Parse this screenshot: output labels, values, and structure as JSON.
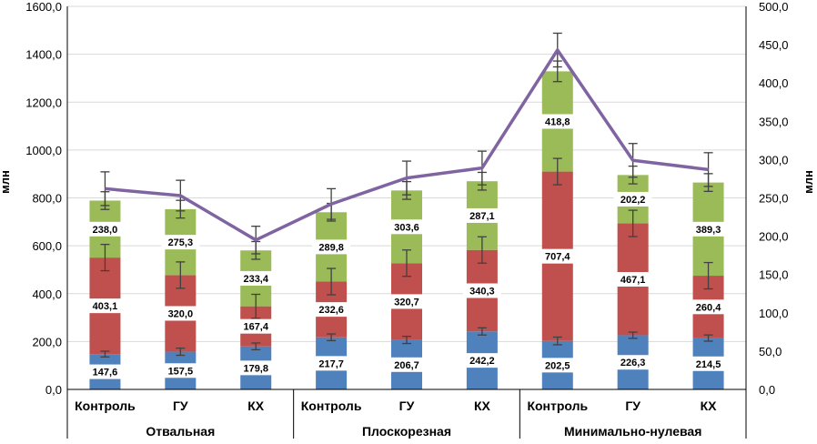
{
  "chart_data": {
    "type": "bar",
    "stacked": true,
    "left_axis": {
      "label": "млн",
      "min": 0,
      "max": 1600,
      "step": 200,
      "ticks": [
        "0,0",
        "200,0",
        "400,0",
        "600,0",
        "800,0",
        "1000,0",
        "1200,0",
        "1400,0",
        "1600,0"
      ]
    },
    "right_axis": {
      "label": "млн",
      "min": 0,
      "max": 500,
      "step": 50,
      "ticks": [
        "0,0",
        "50,0",
        "100,0",
        "150,0",
        "200,0",
        "250,0",
        "300,0",
        "350,0",
        "400,0",
        "450,0",
        "500,0"
      ]
    },
    "groups": [
      {
        "name": "Отвальная",
        "categories": [
          "Контроль",
          "ГУ",
          "КХ"
        ]
      },
      {
        "name": "Плоскорезная",
        "categories": [
          "Контроль",
          "ГУ",
          "КХ"
        ]
      },
      {
        "name": "Минимально-нулевая",
        "categories": [
          "Контроль",
          "ГУ",
          "КХ"
        ]
      }
    ],
    "series": [
      {
        "name": "blue",
        "color": "#4f81bd",
        "values": [
          147.6,
          157.5,
          179.8,
          217.7,
          206.7,
          242.2,
          202.5,
          226.3,
          214.5
        ],
        "labels": [
          "147,6",
          "157,5",
          "179,8",
          "217,7",
          "206,7",
          "242,2",
          "202,5",
          "226,3",
          "214,5"
        ],
        "errors": [
          12,
          15,
          14,
          14,
          15,
          15,
          16,
          13,
          13
        ]
      },
      {
        "name": "red",
        "color": "#c0504d",
        "values": [
          403.1,
          320.0,
          167.4,
          232.6,
          320.7,
          340.3,
          707.4,
          467.1,
          260.4
        ],
        "labels": [
          "403,1",
          "320,0",
          "167,4",
          "232,6",
          "320,7",
          "340,3",
          "707,4",
          "467,1",
          "260,4"
        ],
        "errors": [
          55,
          55,
          50,
          55,
          55,
          55,
          55,
          55,
          55
        ]
      },
      {
        "name": "green",
        "color": "#9bbb59",
        "values": [
          238.0,
          275.3,
          233.4,
          289.8,
          303.6,
          287.1,
          418.8,
          202.2,
          389.3
        ],
        "labels": [
          "238,0",
          "275,3",
          "233,4",
          "289,8",
          "303,6",
          "287,1",
          "418,8",
          "202,2",
          "389,3"
        ],
        "errors": [
          37,
          37,
          37,
          37,
          37,
          37,
          43,
          37,
          37
        ]
      }
    ],
    "line": {
      "name": "purple",
      "color": "#8064a2",
      "axis": "right",
      "values": [
        262,
        253,
        195,
        242,
        276,
        289,
        443,
        299,
        287
      ],
      "errors": [
        22,
        20,
        18,
        20,
        22,
        22,
        22,
        22,
        22
      ]
    }
  }
}
